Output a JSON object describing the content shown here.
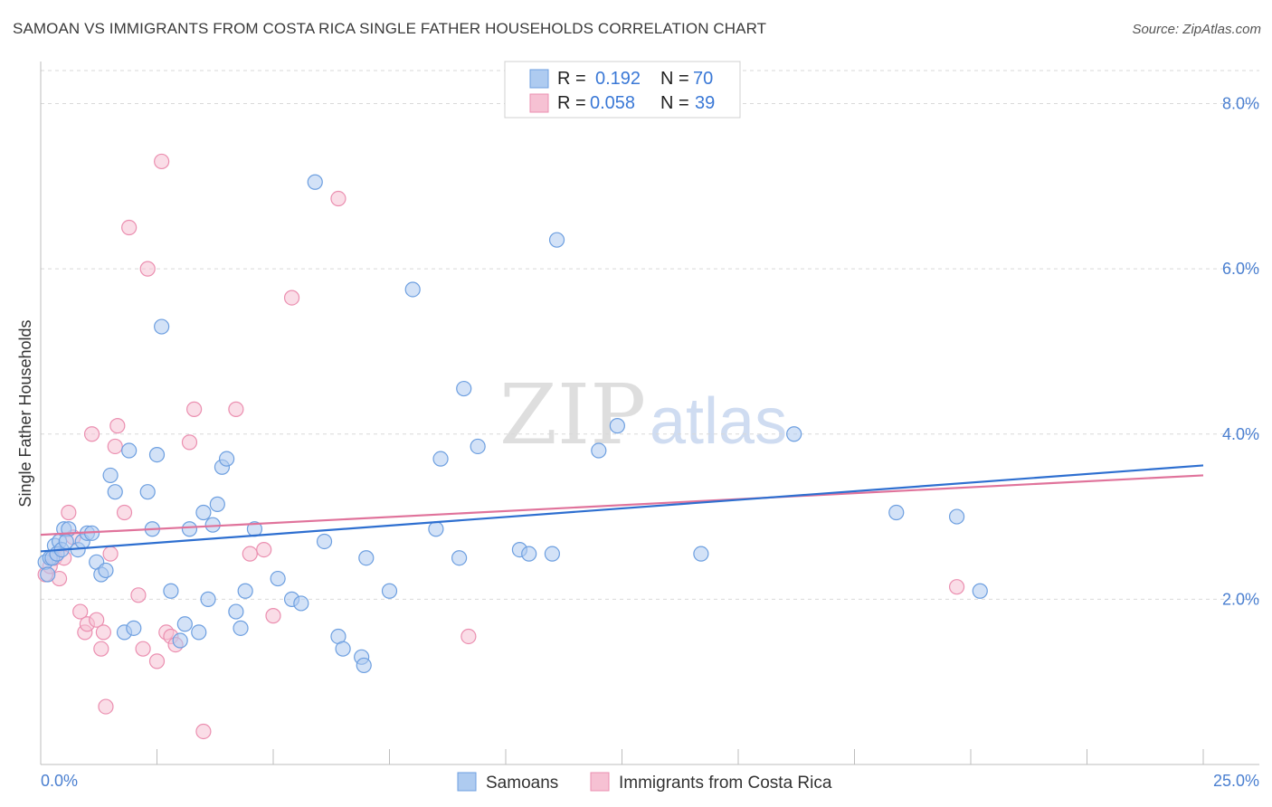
{
  "title": "SAMOAN VS IMMIGRANTS FROM COSTA RICA SINGLE FATHER HOUSEHOLDS CORRELATION CHART",
  "source": "Source: ZipAtlas.com",
  "watermark": {
    "zip": "ZIP",
    "atlas": "atlas"
  },
  "legend_box": {
    "rows": [
      {
        "r_label": "R =",
        "r_value": "0.192",
        "n_label": "N =",
        "n_value": "70"
      },
      {
        "r_label": "R =",
        "r_value": "0.058",
        "n_label": "N =",
        "n_value": "39"
      }
    ]
  },
  "bottom_legend": [
    "Samoans",
    "Immigrants from Costa Rica"
  ],
  "colors": {
    "blue_fill": "#aecbf0",
    "blue_stroke": "#6d9fe0",
    "blue_line": "#2e6fd0",
    "pink_fill": "#f6c1d3",
    "pink_stroke": "#eb8fb0",
    "pink_line": "#e0739b",
    "tick_text": "#4a7fd0",
    "grid": "#d9d9d9"
  },
  "chart_data": {
    "type": "scatter",
    "title": "SAMOAN VS IMMIGRANTS FROM COSTA RICA SINGLE FATHER HOUSEHOLDS CORRELATION CHART",
    "xlabel": "",
    "ylabel": "Single Father Households",
    "xlim": [
      0,
      25
    ],
    "ylim": [
      0,
      8.4
    ],
    "x_tick_labels": [
      "0.0%",
      "25.0%"
    ],
    "y_ticks": [
      2,
      4,
      6,
      8
    ],
    "y_tick_labels": [
      "2.0%",
      "4.0%",
      "6.0%",
      "8.0%"
    ],
    "grid": true,
    "legend_position": "top-center",
    "series": [
      {
        "name": "Samoans",
        "r": 0.192,
        "n": 70,
        "trend": [
          [
            0,
            2.58
          ],
          [
            25,
            3.62
          ]
        ],
        "points": [
          [
            0.1,
            2.45
          ],
          [
            0.15,
            2.3
          ],
          [
            0.2,
            2.5
          ],
          [
            0.3,
            2.65
          ],
          [
            0.4,
            2.7
          ],
          [
            0.5,
            2.85
          ],
          [
            0.6,
            2.85
          ],
          [
            0.8,
            2.6
          ],
          [
            0.9,
            2.7
          ],
          [
            1.0,
            2.8
          ],
          [
            1.1,
            2.8
          ],
          [
            1.2,
            2.45
          ],
          [
            1.3,
            2.3
          ],
          [
            1.4,
            2.35
          ],
          [
            1.5,
            3.5
          ],
          [
            1.6,
            3.3
          ],
          [
            1.8,
            1.6
          ],
          [
            1.9,
            3.8
          ],
          [
            2.0,
            1.65
          ],
          [
            2.3,
            3.3
          ],
          [
            2.4,
            2.85
          ],
          [
            2.5,
            3.75
          ],
          [
            2.6,
            5.3
          ],
          [
            2.8,
            2.1
          ],
          [
            3.0,
            1.5
          ],
          [
            3.1,
            1.7
          ],
          [
            3.2,
            2.85
          ],
          [
            3.4,
            1.6
          ],
          [
            3.5,
            3.05
          ],
          [
            3.6,
            2.0
          ],
          [
            3.7,
            2.9
          ],
          [
            3.8,
            3.15
          ],
          [
            3.9,
            3.6
          ],
          [
            4.0,
            3.7
          ],
          [
            4.2,
            1.85
          ],
          [
            4.3,
            1.65
          ],
          [
            4.4,
            2.1
          ],
          [
            4.6,
            2.85
          ],
          [
            5.1,
            2.25
          ],
          [
            5.4,
            2.0
          ],
          [
            5.6,
            1.95
          ],
          [
            5.9,
            7.05
          ],
          [
            6.1,
            2.7
          ],
          [
            6.4,
            1.55
          ],
          [
            6.5,
            1.4
          ],
          [
            6.9,
            1.3
          ],
          [
            6.95,
            1.2
          ],
          [
            7.0,
            2.5
          ],
          [
            7.5,
            2.1
          ],
          [
            8.0,
            5.75
          ],
          [
            8.5,
            2.85
          ],
          [
            8.6,
            3.7
          ],
          [
            9.0,
            2.5
          ],
          [
            9.1,
            4.55
          ],
          [
            9.4,
            3.85
          ],
          [
            10.3,
            2.6
          ],
          [
            10.5,
            2.55
          ],
          [
            11.0,
            2.55
          ],
          [
            11.1,
            6.35
          ],
          [
            12.0,
            3.8
          ],
          [
            12.4,
            4.1
          ],
          [
            14.2,
            2.55
          ],
          [
            16.2,
            4.0
          ],
          [
            18.4,
            3.05
          ],
          [
            19.7,
            3.0
          ],
          [
            20.2,
            2.1
          ],
          [
            0.25,
            2.5
          ],
          [
            0.35,
            2.55
          ],
          [
            0.45,
            2.6
          ],
          [
            0.55,
            2.7
          ]
        ]
      },
      {
        "name": "Immigrants from Costa Rica",
        "r": 0.058,
        "n": 39,
        "trend": [
          [
            0,
            2.78
          ],
          [
            25,
            3.5
          ]
        ],
        "points": [
          [
            0.1,
            2.3
          ],
          [
            0.2,
            2.4
          ],
          [
            0.3,
            2.5
          ],
          [
            0.4,
            2.25
          ],
          [
            0.5,
            2.5
          ],
          [
            0.6,
            3.05
          ],
          [
            0.7,
            2.75
          ],
          [
            0.85,
            1.85
          ],
          [
            0.95,
            1.6
          ],
          [
            1.0,
            1.7
          ],
          [
            1.1,
            4.0
          ],
          [
            1.2,
            1.75
          ],
          [
            1.3,
            1.4
          ],
          [
            1.35,
            1.6
          ],
          [
            1.4,
            0.7
          ],
          [
            1.5,
            2.55
          ],
          [
            1.6,
            3.85
          ],
          [
            1.65,
            4.1
          ],
          [
            1.8,
            3.05
          ],
          [
            1.9,
            6.5
          ],
          [
            2.1,
            2.05
          ],
          [
            2.2,
            1.4
          ],
          [
            2.3,
            6.0
          ],
          [
            2.5,
            1.25
          ],
          [
            2.6,
            7.3
          ],
          [
            2.7,
            1.6
          ],
          [
            2.8,
            1.55
          ],
          [
            2.9,
            1.45
          ],
          [
            3.2,
            3.9
          ],
          [
            3.3,
            4.3
          ],
          [
            3.5,
            0.4
          ],
          [
            4.2,
            4.3
          ],
          [
            4.5,
            2.55
          ],
          [
            4.8,
            2.6
          ],
          [
            5.0,
            1.8
          ],
          [
            5.4,
            5.65
          ],
          [
            6.4,
            6.85
          ],
          [
            9.2,
            1.55
          ],
          [
            19.7,
            2.15
          ]
        ]
      }
    ]
  }
}
